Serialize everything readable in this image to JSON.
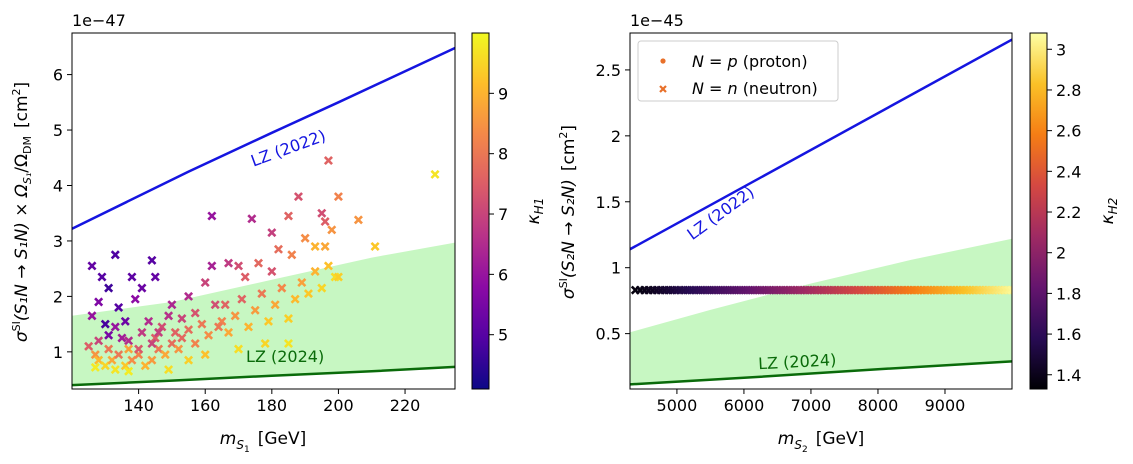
{
  "chart_data": [
    {
      "type": "scatter",
      "offset_text": "1e−47",
      "xlim": [
        120,
        235
      ],
      "ylim": [
        0.33,
        6.75
      ],
      "xticks": [
        140,
        160,
        180,
        200,
        220
      ],
      "yticks": [
        1,
        2,
        3,
        4,
        5,
        6
      ],
      "xlabel": {
        "sym": "m",
        "sub": "S",
        "subsub": "1",
        "unit": "[GeV]"
      },
      "ylabel": {
        "sym": "σ",
        "sup": "SI",
        "process": "(S₁N → S₁N) × Ω",
        "omega_sub": "S₁",
        "over": "/Ω",
        "over_sub": "DM",
        "unit": "[cm",
        "unit_sup": "2",
        "unit_close": "]"
      },
      "colorbar": {
        "label": "κ",
        "label_sub": "H1",
        "range": [
          4.1,
          10.0
        ],
        "ticks": [
          5,
          6,
          7,
          8,
          9
        ]
      },
      "curves": [
        {
          "name": "LZ (2022)",
          "color": "#1515e0",
          "label_rotation": -20,
          "label_at": [
            185.5,
            4.58
          ],
          "x": [
            120,
            155,
            180,
            200,
            235
          ],
          "y": [
            3.22,
            4.25,
            4.95,
            5.5,
            6.48
          ]
        },
        {
          "name": "LZ (2024)",
          "color": "#0a6b0a",
          "label_rotation": 0,
          "label_at": [
            184,
            0.82
          ],
          "x": [
            120,
            150,
            180,
            210,
            235
          ],
          "y": [
            0.4,
            0.48,
            0.57,
            0.65,
            0.73
          ]
        }
      ],
      "band": {
        "color": "#b9f5b3",
        "x": [
          120,
          150,
          180,
          210,
          235
        ],
        "top": [
          1.65,
          1.9,
          2.3,
          2.7,
          2.97
        ],
        "bottom": [
          0.4,
          0.48,
          0.57,
          0.65,
          0.73
        ]
      },
      "points": [
        [
          126,
          2.55,
          5.2
        ],
        [
          129,
          2.35,
          5.0
        ],
        [
          131,
          2.15,
          4.7
        ],
        [
          133,
          2.75,
          4.9
        ],
        [
          138,
          2.35,
          5.1
        ],
        [
          141,
          2.15,
          5.3
        ],
        [
          144,
          2.65,
          5.0
        ],
        [
          145,
          2.35,
          5.2
        ],
        [
          128,
          1.9,
          5.6
        ],
        [
          134,
          1.8,
          5.0
        ],
        [
          136,
          1.55,
          5.3
        ],
        [
          139,
          1.95,
          5.8
        ],
        [
          126,
          1.65,
          6.0
        ],
        [
          130,
          1.5,
          4.8
        ],
        [
          131,
          1.3,
          5.5
        ],
        [
          133,
          1.45,
          6.0
        ],
        [
          135,
          1.25,
          6.2
        ],
        [
          125,
          1.1,
          7.5
        ],
        [
          127,
          0.95,
          8.5
        ],
        [
          128,
          0.85,
          9.1
        ],
        [
          130,
          0.75,
          9.5
        ],
        [
          132,
          0.85,
          8.8
        ],
        [
          134,
          0.95,
          8.0
        ],
        [
          136,
          0.75,
          9.3
        ],
        [
          138,
          0.85,
          8.4
        ],
        [
          140,
          0.95,
          8.2
        ],
        [
          142,
          0.75,
          9.0
        ],
        [
          144,
          0.85,
          8.6
        ],
        [
          146,
          1.05,
          8.0
        ],
        [
          148,
          0.95,
          8.8
        ],
        [
          150,
          1.15,
          7.8
        ],
        [
          152,
          1.05,
          8.5
        ],
        [
          141,
          1.35,
          6.8
        ],
        [
          143,
          1.55,
          6.5
        ],
        [
          145,
          1.25,
          7.5
        ],
        [
          147,
          1.45,
          7.2
        ],
        [
          149,
          1.65,
          6.6
        ],
        [
          151,
          1.35,
          7.6
        ],
        [
          153,
          1.6,
          7.0
        ],
        [
          155,
          1.4,
          7.8
        ],
        [
          157,
          1.7,
          7.3
        ],
        [
          159,
          1.5,
          8.0
        ],
        [
          161,
          1.3,
          8.4
        ],
        [
          163,
          1.85,
          7.2
        ],
        [
          165,
          1.55,
          8.2
        ],
        [
          167,
          1.35,
          8.8
        ],
        [
          169,
          1.65,
          8.5
        ],
        [
          171,
          1.95,
          7.6
        ],
        [
          173,
          1.45,
          9.0
        ],
        [
          175,
          1.75,
          8.6
        ],
        [
          177,
          2.05,
          8.0
        ],
        [
          179,
          1.55,
          9.3
        ],
        [
          181,
          1.85,
          8.8
        ],
        [
          183,
          2.15,
          8.3
        ],
        [
          185,
          1.6,
          9.4
        ],
        [
          187,
          1.95,
          9.1
        ],
        [
          189,
          2.25,
          8.7
        ],
        [
          191,
          2.05,
          9.3
        ],
        [
          193,
          2.45,
          9.0
        ],
        [
          195,
          2.15,
          9.5
        ],
        [
          197,
          2.55,
          9.2
        ],
        [
          199,
          2.35,
          9.6
        ],
        [
          155,
          2.0,
          6.5
        ],
        [
          160,
          2.25,
          7.0
        ],
        [
          162,
          2.55,
          6.3
        ],
        [
          167,
          2.6,
          6.8
        ],
        [
          170,
          2.55,
          7.2
        ],
        [
          172,
          2.35,
          7.5
        ],
        [
          176,
          2.6,
          7.7
        ],
        [
          180,
          2.45,
          7.3
        ],
        [
          182,
          2.85,
          7.8
        ],
        [
          186,
          2.75,
          8.2
        ],
        [
          190,
          3.05,
          8.4
        ],
        [
          193,
          2.9,
          9.0
        ],
        [
          196,
          2.9,
          8.8
        ],
        [
          198,
          3.2,
          8.5
        ],
        [
          162,
          3.45,
          6.0
        ],
        [
          174,
          3.4,
          6.5
        ],
        [
          180,
          3.15,
          6.9
        ],
        [
          185,
          3.45,
          7.6
        ],
        [
          195,
          3.5,
          7.2
        ],
        [
          196,
          3.35,
          7.5
        ],
        [
          188,
          3.8,
          7.3
        ],
        [
          197,
          4.45,
          7.6
        ],
        [
          200,
          3.8,
          8.2
        ],
        [
          206,
          3.38,
          8.5
        ],
        [
          211,
          2.9,
          9.3
        ],
        [
          229,
          4.2,
          9.7
        ],
        [
          200,
          2.35,
          9.4
        ],
        [
          185,
          1.15,
          9.7
        ],
        [
          178,
          1.15,
          9.5
        ],
        [
          170,
          1.05,
          9.6
        ],
        [
          160,
          0.95,
          9.2
        ],
        [
          155,
          0.85,
          9.4
        ],
        [
          149,
          0.68,
          9.6
        ],
        [
          137,
          0.65,
          9.8
        ],
        [
          133,
          0.68,
          9.7
        ],
        [
          127,
          0.72,
          9.8
        ],
        [
          128,
          1.2,
          7.0
        ],
        [
          137,
          1.2,
          6.5
        ],
        [
          140,
          1.05,
          7.4
        ],
        [
          144,
          1.15,
          7.0
        ],
        [
          146,
          1.35,
          6.9
        ],
        [
          153,
          1.25,
          7.7
        ],
        [
          157,
          1.15,
          8.2
        ],
        [
          164,
          1.45,
          8.0
        ],
        [
          166,
          1.85,
          7.6
        ],
        [
          150,
          1.85,
          6.4
        ],
        [
          137,
          1.05,
          8.7
        ],
        [
          131,
          1.05,
          8.0
        ]
      ]
    },
    {
      "type": "scatter",
      "offset_text": "1e−45",
      "xlim": [
        4300,
        10000
      ],
      "ylim": [
        0.08,
        2.78
      ],
      "xticks": [
        5000,
        6000,
        7000,
        8000,
        9000
      ],
      "yticks": [
        0.5,
        1.0,
        1.5,
        2.0,
        2.5
      ],
      "xlabel": {
        "sym": "m",
        "sub": "S",
        "subsub": "2",
        "unit": "[GeV]"
      },
      "ylabel": {
        "sym": "σ",
        "sup": "SI",
        "process": "(S₂N → S₂N)",
        "unit": "[cm",
        "unit_sup": "2",
        "unit_close": "]"
      },
      "colorbar": {
        "label": "κ",
        "label_sub": "H2",
        "range": [
          1.33,
          3.08
        ],
        "ticks": [
          1.4,
          1.6,
          1.8,
          2.0,
          2.2,
          2.4,
          2.6,
          2.8,
          3.0
        ]
      },
      "legend": {
        "placement": "top-left",
        "entries": [
          {
            "marker": "dot",
            "color": "#e8702a",
            "math": "N = p",
            "text": "(proton)"
          },
          {
            "marker": "x",
            "color": "#e8702a",
            "math": "N = n",
            "text": "(neutron)"
          }
        ]
      },
      "curves": [
        {
          "name": "LZ (2022)",
          "color": "#1515e0",
          "label_rotation": -36,
          "label_at": [
            5700,
            1.38
          ],
          "x": [
            4300,
            10000
          ],
          "y": [
            1.14,
            2.73
          ]
        },
        {
          "name": "LZ (2024)",
          "color": "#0a6b0a",
          "label_rotation": -3,
          "label_at": [
            6800,
            0.245
          ],
          "x": [
            4300,
            6000,
            8000,
            10000
          ],
          "y": [
            0.115,
            0.165,
            0.23,
            0.29
          ]
        }
      ],
      "band": {
        "color": "#b9f5b3",
        "x": [
          4300,
          5500,
          7000,
          8500,
          10000
        ],
        "top": [
          0.51,
          0.68,
          0.88,
          1.06,
          1.22
        ],
        "bottom": [
          0.115,
          0.15,
          0.2,
          0.25,
          0.29
        ]
      },
      "points_x_range": [
        4380,
        10000
      ],
      "points_y": 0.83,
      "points_kappa_range": [
        1.36,
        3.05
      ],
      "points_count": 110
    }
  ]
}
